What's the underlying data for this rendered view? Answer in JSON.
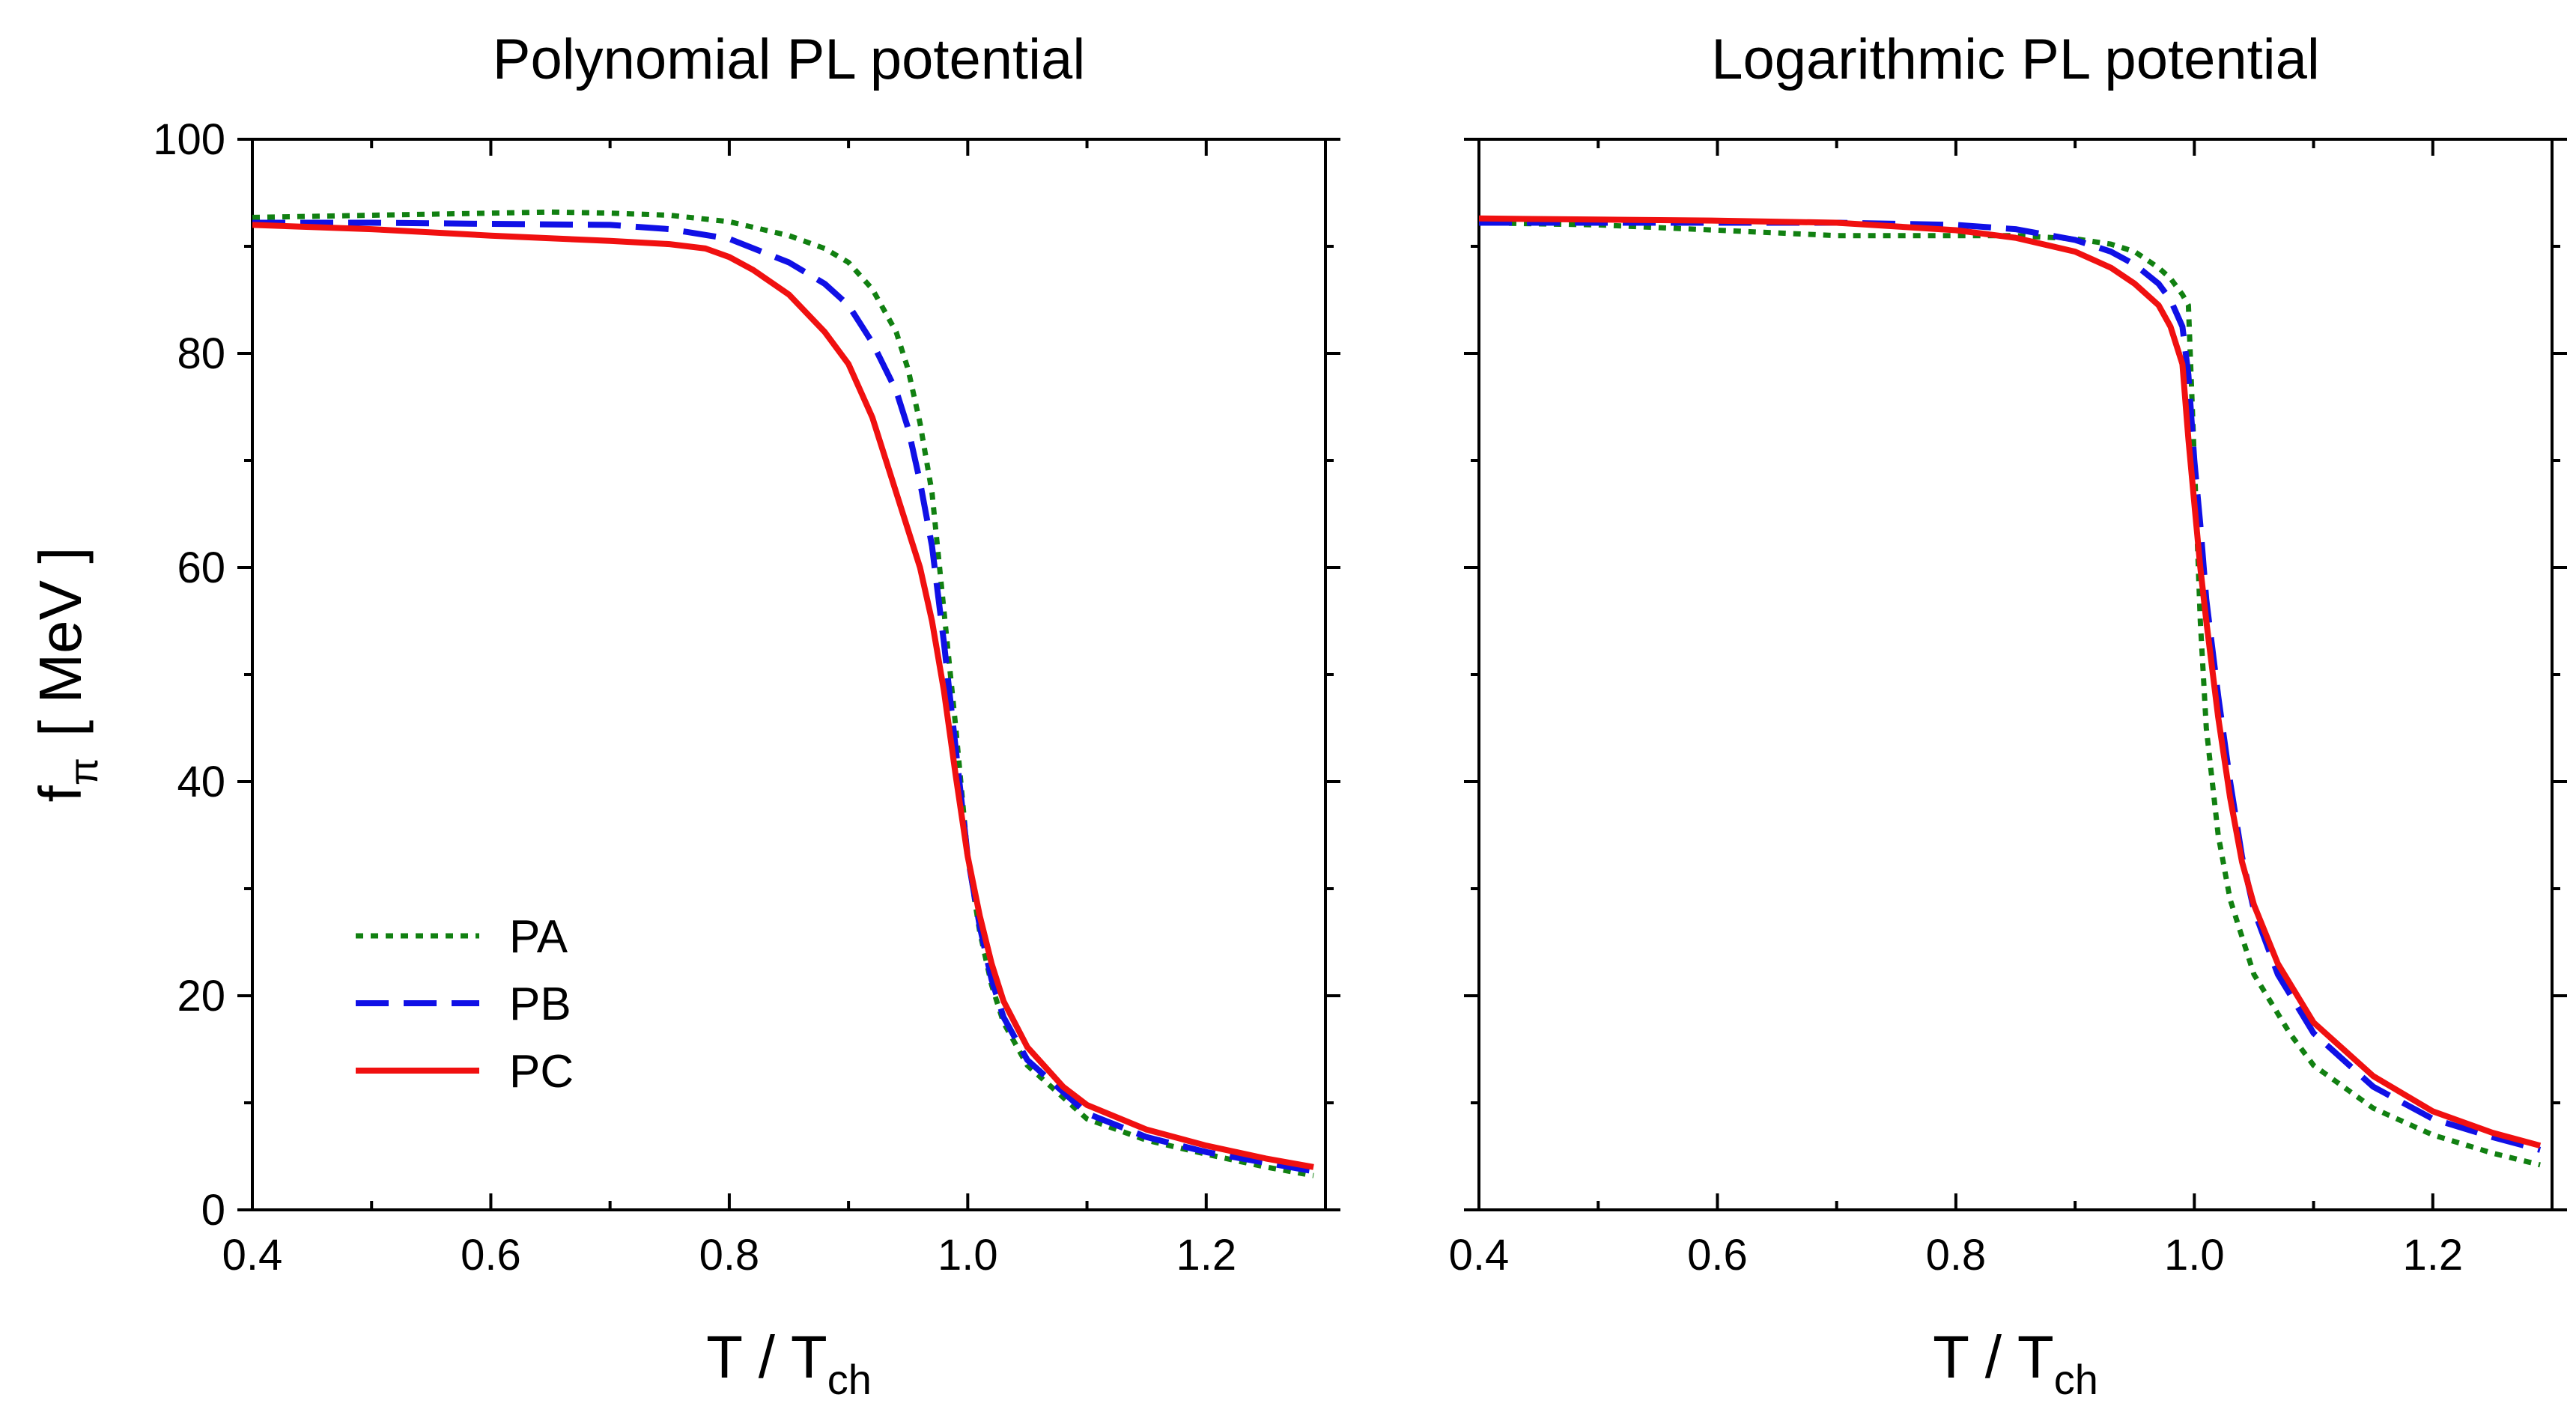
{
  "chart_data": [
    {
      "type": "line",
      "title": "Polynomial PL potential",
      "xlabel": {
        "main": "T / T",
        "sub": "ch"
      },
      "ylabel": {
        "main": "f",
        "sub": "π",
        "rest": "[ MeV ]"
      },
      "xlim": [
        0.4,
        1.3
      ],
      "ylim": [
        0,
        100
      ],
      "xticks": [
        0.4,
        0.6,
        0.8,
        1.0,
        1.2
      ],
      "xtick_labels": [
        "0.4",
        "0.6",
        "0.8",
        "1.0",
        "1.2"
      ],
      "yticks": [
        0,
        20,
        40,
        60,
        80,
        100
      ],
      "ytick_labels": [
        "0",
        "20",
        "40",
        "60",
        "80",
        "100"
      ],
      "show_ytick_labels": true,
      "legend": {
        "position": "lower-left",
        "entries": [
          "PA",
          "PB",
          "PC"
        ]
      },
      "series": [
        {
          "name": "PA",
          "color": "#118011",
          "style": "dotted",
          "x": [
            0.4,
            0.5,
            0.6,
            0.65,
            0.7,
            0.75,
            0.8,
            0.85,
            0.88,
            0.9,
            0.92,
            0.94,
            0.95,
            0.96,
            0.97,
            0.98,
            0.99,
            1.0,
            1.01,
            1.02,
            1.03,
            1.05,
            1.08,
            1.1,
            1.15,
            1.2,
            1.25,
            1.29
          ],
          "y": [
            92.7,
            92.9,
            93.1,
            93.2,
            93.1,
            92.9,
            92.3,
            91.0,
            89.8,
            88.5,
            86.0,
            82.0,
            78.5,
            73.5,
            67.0,
            56.0,
            45.0,
            33.0,
            26.0,
            21.0,
            17.5,
            13.5,
            10.5,
            8.5,
            6.5,
            5.2,
            4.0,
            3.2
          ]
        },
        {
          "name": "PB",
          "color": "#1010e6",
          "style": "dashed",
          "x": [
            0.4,
            0.5,
            0.6,
            0.7,
            0.75,
            0.8,
            0.85,
            0.88,
            0.9,
            0.92,
            0.94,
            0.95,
            0.96,
            0.97,
            0.98,
            0.99,
            1.0,
            1.01,
            1.02,
            1.03,
            1.05,
            1.08,
            1.1,
            1.15,
            1.2,
            1.25,
            1.29
          ],
          "y": [
            92.2,
            92.2,
            92.1,
            92.0,
            91.6,
            90.7,
            88.5,
            86.5,
            84.5,
            81.0,
            76.5,
            73.0,
            68.0,
            62.0,
            53.0,
            43.0,
            33.0,
            26.5,
            21.5,
            18.0,
            14.0,
            11.0,
            9.0,
            6.8,
            5.4,
            4.4,
            3.6
          ]
        },
        {
          "name": "PC",
          "color": "#f01010",
          "style": "solid",
          "x": [
            0.4,
            0.5,
            0.6,
            0.7,
            0.75,
            0.78,
            0.8,
            0.82,
            0.85,
            0.88,
            0.9,
            0.92,
            0.94,
            0.96,
            0.97,
            0.98,
            0.99,
            1.0,
            1.01,
            1.02,
            1.03,
            1.05,
            1.08,
            1.1,
            1.15,
            1.2,
            1.25,
            1.29
          ],
          "y": [
            92.0,
            91.6,
            91.0,
            90.5,
            90.2,
            89.8,
            89.0,
            87.8,
            85.5,
            82.0,
            79.0,
            74.0,
            67.0,
            60.0,
            55.0,
            48.5,
            40.5,
            33.0,
            27.5,
            23.0,
            19.5,
            15.2,
            11.5,
            9.8,
            7.5,
            6.0,
            4.8,
            4.0
          ]
        }
      ]
    },
    {
      "type": "line",
      "title": "Logarithmic PL potential",
      "xlabel": {
        "main": "T / T",
        "sub": "ch"
      },
      "xlim": [
        0.4,
        1.3
      ],
      "ylim": [
        0,
        100
      ],
      "xticks": [
        0.4,
        0.6,
        0.8,
        1.0,
        1.2
      ],
      "xtick_labels": [
        "0.4",
        "0.6",
        "0.8",
        "1.0",
        "1.2"
      ],
      "yticks": [
        0,
        20,
        40,
        60,
        80,
        100
      ],
      "show_ytick_labels": false,
      "series": [
        {
          "name": "PA",
          "color": "#118011",
          "style": "dotted",
          "x": [
            0.4,
            0.5,
            0.6,
            0.7,
            0.75,
            0.8,
            0.85,
            0.9,
            0.93,
            0.95,
            0.97,
            0.98,
            0.99,
            0.995,
            1.0,
            1.005,
            1.01,
            1.02,
            1.03,
            1.05,
            1.08,
            1.1,
            1.15,
            1.2,
            1.25,
            1.29
          ],
          "y": [
            92.2,
            92.0,
            91.5,
            91.0,
            91.0,
            91.0,
            91.0,
            90.7,
            90.2,
            89.5,
            88.0,
            87.0,
            85.5,
            84.5,
            70.0,
            55.0,
            45.0,
            35.0,
            29.0,
            22.0,
            16.5,
            13.5,
            9.5,
            7.0,
            5.3,
            4.2
          ]
        },
        {
          "name": "PB",
          "color": "#1010e6",
          "style": "dashed",
          "x": [
            0.4,
            0.5,
            0.6,
            0.7,
            0.8,
            0.85,
            0.9,
            0.93,
            0.95,
            0.97,
            0.98,
            0.99,
            0.995,
            1.0,
            1.005,
            1.01,
            1.02,
            1.03,
            1.04,
            1.05,
            1.07,
            1.1,
            1.15,
            1.2,
            1.25,
            1.29
          ],
          "y": [
            92.2,
            92.2,
            92.2,
            92.2,
            92.0,
            91.6,
            90.6,
            89.5,
            88.3,
            86.5,
            85.0,
            82.5,
            78.0,
            70.0,
            64.0,
            57.0,
            48.0,
            40.0,
            33.0,
            28.0,
            22.0,
            16.5,
            11.5,
            8.5,
            6.8,
            5.6
          ]
        },
        {
          "name": "PC",
          "color": "#f01010",
          "style": "solid",
          "x": [
            0.4,
            0.5,
            0.6,
            0.7,
            0.8,
            0.85,
            0.9,
            0.93,
            0.95,
            0.97,
            0.98,
            0.99,
            0.995,
            1.0,
            1.005,
            1.01,
            1.02,
            1.03,
            1.04,
            1.05,
            1.07,
            1.1,
            1.15,
            1.2,
            1.25,
            1.29
          ],
          "y": [
            92.6,
            92.5,
            92.4,
            92.2,
            91.5,
            90.8,
            89.5,
            88.0,
            86.5,
            84.5,
            82.5,
            79.0,
            72.0,
            66.0,
            60.0,
            55.0,
            46.0,
            38.5,
            32.5,
            28.5,
            23.0,
            17.5,
            12.5,
            9.2,
            7.2,
            6.0
          ]
        }
      ]
    }
  ]
}
